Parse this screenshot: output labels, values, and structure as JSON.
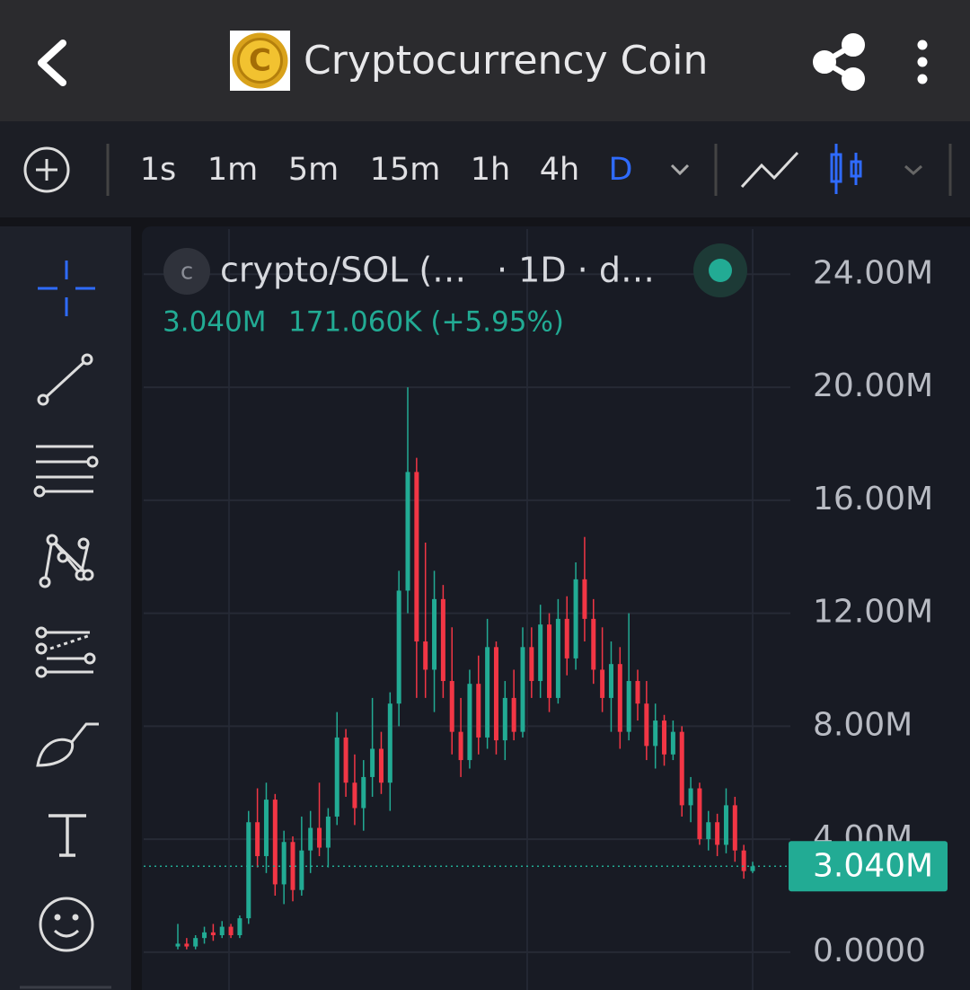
{
  "header": {
    "title": "Cryptocurrency Coin"
  },
  "toolbar": {
    "intervals": [
      "1s",
      "1m",
      "5m",
      "15m",
      "1h",
      "4h",
      "D"
    ]
  },
  "legend": {
    "symbol": "crypto/SOL (…",
    "meta": "· 1D · d…",
    "last": "3.040M",
    "change": "171.060K (+5.95%)"
  },
  "chart_data": {
    "type": "candlestick",
    "ylim": [
      -1.34,
      25.6
    ],
    "yticks": [
      {
        "value": 0,
        "label": "0.0000"
      },
      {
        "value": 4,
        "label": "4.00M"
      },
      {
        "value": 8,
        "label": "8.00M"
      },
      {
        "value": 12,
        "label": "12.00M"
      },
      {
        "value": 16,
        "label": "16.00M"
      },
      {
        "value": 20,
        "label": "20.00M"
      },
      {
        "value": 24,
        "label": "24.00M"
      }
    ],
    "grid": true,
    "up_color": "#22ab94",
    "down_color": "#f23645",
    "open": [
      0.2,
      0.3,
      0.2,
      0.5,
      0.7,
      0.6,
      0.9,
      0.6,
      1.2,
      4.6,
      3.4,
      5.4,
      2.4,
      3.9,
      2.2,
      3.6,
      4.4,
      3.7,
      4.8,
      7.6,
      6.0,
      5.1,
      6.2,
      7.2,
      6.0,
      8.8,
      12.8,
      17.0,
      11.0,
      10.0,
      12.5,
      9.6,
      7.8,
      6.8,
      9.5,
      7.6,
      10.8,
      7.5,
      9.0,
      7.8,
      10.8,
      9.6,
      11.6,
      9.0,
      11.8,
      10.4,
      13.2,
      11.8,
      10.0,
      9.0,
      10.2,
      7.8,
      9.6,
      8.8,
      7.3,
      8.2,
      7.0,
      7.8,
      5.2,
      5.8,
      4.0,
      4.6,
      3.8,
      5.2,
      3.6,
      2.87
    ],
    "high": [
      1.0,
      0.5,
      0.6,
      0.9,
      1.0,
      1.1,
      1.0,
      1.3,
      5.0,
      5.8,
      6.0,
      5.6,
      4.3,
      4.1,
      4.8,
      5.0,
      6.0,
      5.1,
      8.5,
      7.9,
      7.0,
      6.8,
      9.0,
      7.8,
      9.2,
      13.5,
      20.0,
      17.5,
      14.5,
      13.5,
      13.0,
      11.5,
      9.0,
      10.0,
      10.5,
      11.8,
      11.0,
      9.6,
      10.0,
      11.5,
      11.5,
      12.3,
      12.0,
      12.5,
      12.6,
      13.8,
      14.7,
      12.5,
      11.5,
      11.0,
      10.8,
      12.0,
      10.0,
      9.6,
      8.8,
      8.4,
      8.2,
      8.0,
      6.2,
      6.0,
      5.0,
      4.9,
      5.8,
      5.5,
      3.8,
      3.2
    ],
    "low": [
      0.1,
      0.1,
      0.1,
      0.3,
      0.4,
      0.5,
      0.5,
      0.5,
      1.0,
      3.0,
      2.8,
      2.0,
      1.7,
      1.8,
      2.0,
      2.8,
      3.4,
      3.0,
      4.5,
      5.5,
      4.5,
      4.3,
      5.5,
      5.6,
      5.0,
      8.0,
      12.0,
      9.0,
      9.0,
      8.5,
      9.0,
      7.0,
      6.2,
      6.5,
      7.0,
      7.2,
      7.0,
      6.8,
      7.5,
      7.6,
      9.0,
      9.0,
      8.5,
      8.8,
      9.8,
      10.0,
      11.0,
      9.5,
      8.5,
      7.8,
      7.2,
      7.5,
      8.2,
      6.8,
      6.5,
      6.6,
      6.8,
      4.8,
      4.6,
      3.8,
      3.6,
      3.4,
      3.5,
      3.2,
      2.6,
      2.8
    ],
    "close": [
      0.3,
      0.2,
      0.5,
      0.7,
      0.6,
      0.9,
      0.6,
      1.2,
      4.6,
      3.4,
      5.4,
      2.4,
      3.9,
      2.2,
      3.6,
      4.4,
      3.7,
      4.8,
      7.6,
      6.0,
      5.1,
      6.2,
      7.2,
      6.0,
      8.8,
      12.8,
      17.0,
      11.0,
      10.0,
      12.5,
      9.6,
      7.8,
      6.8,
      9.5,
      7.6,
      10.8,
      7.5,
      9.0,
      7.8,
      10.8,
      9.6,
      11.6,
      9.0,
      11.8,
      10.4,
      13.2,
      11.8,
      10.0,
      9.0,
      10.2,
      7.8,
      9.6,
      8.8,
      7.3,
      8.2,
      7.0,
      7.8,
      5.2,
      5.8,
      4.0,
      4.6,
      3.8,
      5.2,
      3.6,
      2.87,
      3.04
    ],
    "last_price": {
      "value": 3.04,
      "label": "3.040M"
    }
  }
}
